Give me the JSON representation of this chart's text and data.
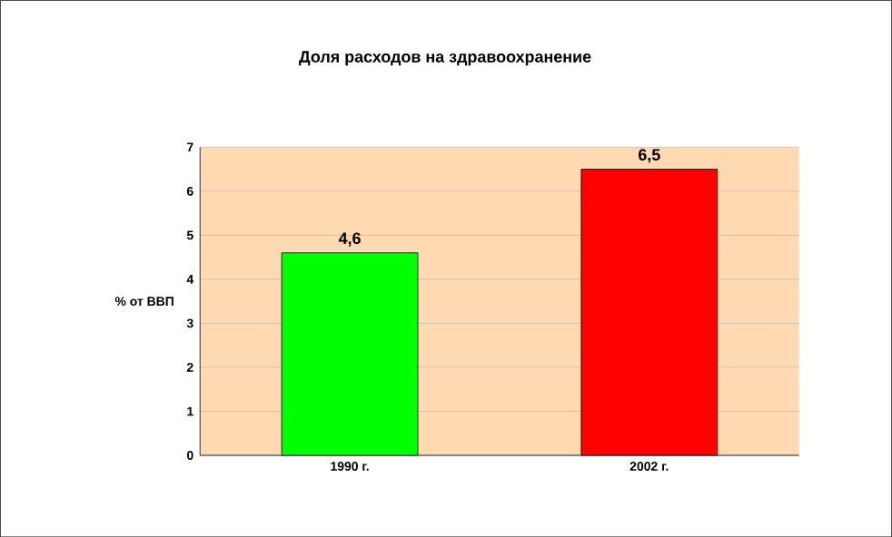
{
  "chart_data": {
    "type": "bar",
    "title": "Доля расходов на здравоохранение",
    "ylabel": "% от ВВП",
    "categories": [
      "1990 г.",
      "2002 г."
    ],
    "values": [
      4.6,
      6.5
    ],
    "colors": [
      "#00ff00",
      "#ff0000"
    ],
    "value_labels": [
      "4,6",
      "6,5"
    ],
    "ylim": [
      0,
      7
    ],
    "yticks": [
      0,
      1,
      2,
      3,
      4,
      5,
      6,
      7
    ],
    "grid": "y"
  }
}
